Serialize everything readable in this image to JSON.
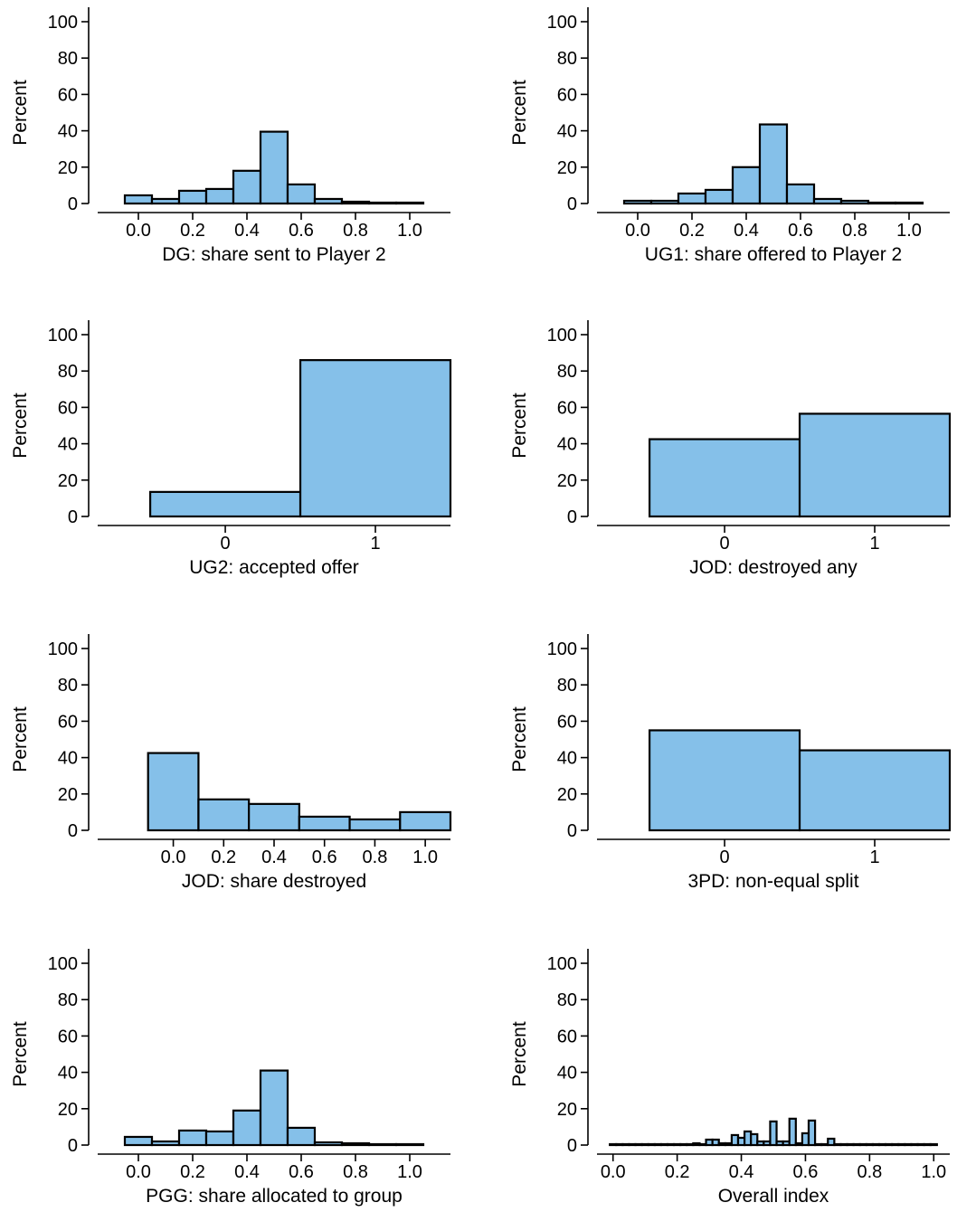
{
  "chart_data": [
    {
      "type": "bar",
      "xlabel": "DG: share sent to Player 2",
      "ylabel": "Percent",
      "x_domain": [
        -0.15,
        1.15
      ],
      "xticks": [
        0.0,
        0.2,
        0.4,
        0.6,
        0.8,
        1.0
      ],
      "xtick_labels": [
        "0.0",
        "0.2",
        "0.4",
        "0.6",
        "0.8",
        "1.0"
      ],
      "ylim": [
        0,
        100
      ],
      "yticks": [
        0,
        20,
        40,
        60,
        80,
        100
      ],
      "ytick_labels": [
        "0",
        "20",
        "40",
        "60",
        "80",
        "100"
      ],
      "bin_width": 0.1,
      "x": [
        0.0,
        0.1,
        0.2,
        0.3,
        0.4,
        0.5,
        0.6,
        0.7,
        0.8,
        0.9,
        1.0
      ],
      "values": [
        4.5,
        2.5,
        7,
        8,
        18,
        39.5,
        10.5,
        2.5,
        1,
        0.5,
        0.5
      ]
    },
    {
      "type": "bar",
      "xlabel": "UG1: share offered to Player 2",
      "ylabel": "Percent",
      "x_domain": [
        -0.15,
        1.15
      ],
      "xticks": [
        0.0,
        0.2,
        0.4,
        0.6,
        0.8,
        1.0
      ],
      "xtick_labels": [
        "0.0",
        "0.2",
        "0.4",
        "0.6",
        "0.8",
        "1.0"
      ],
      "ylim": [
        0,
        100
      ],
      "yticks": [
        0,
        20,
        40,
        60,
        80,
        100
      ],
      "ytick_labels": [
        "0",
        "20",
        "40",
        "60",
        "80",
        "100"
      ],
      "bin_width": 0.1,
      "x": [
        0.0,
        0.1,
        0.2,
        0.3,
        0.4,
        0.5,
        0.6,
        0.7,
        0.8,
        0.9,
        1.0
      ],
      "values": [
        1.5,
        1.5,
        5.5,
        7.5,
        20,
        43.5,
        10.5,
        2.5,
        1.5,
        0.5,
        0.5
      ]
    },
    {
      "type": "bar",
      "xlabel": "UG2: accepted offer",
      "ylabel": "Percent",
      "x_domain": [
        -0.85,
        1.5
      ],
      "xticks": [
        0,
        1
      ],
      "xtick_labels": [
        "0",
        "1"
      ],
      "ylim": [
        0,
        100
      ],
      "yticks": [
        0,
        20,
        40,
        60,
        80,
        100
      ],
      "ytick_labels": [
        "0",
        "20",
        "40",
        "60",
        "80",
        "100"
      ],
      "bin_width": 1,
      "x": [
        0,
        1
      ],
      "values": [
        13.5,
        86
      ]
    },
    {
      "type": "bar",
      "xlabel": "JOD: destroyed any",
      "ylabel": "Percent",
      "x_domain": [
        -0.85,
        1.5
      ],
      "xticks": [
        0,
        1
      ],
      "xtick_labels": [
        "0",
        "1"
      ],
      "ylim": [
        0,
        100
      ],
      "yticks": [
        0,
        20,
        40,
        60,
        80,
        100
      ],
      "ytick_labels": [
        "0",
        "20",
        "40",
        "60",
        "80",
        "100"
      ],
      "bin_width": 1,
      "x": [
        0,
        1
      ],
      "values": [
        42.5,
        56.5
      ]
    },
    {
      "type": "bar",
      "xlabel": "JOD: share destroyed",
      "ylabel": "Percent",
      "x_domain": [
        -0.3,
        1.1
      ],
      "xticks": [
        0.0,
        0.2,
        0.4,
        0.6,
        0.8,
        1.0
      ],
      "xtick_labels": [
        "0.0",
        "0.2",
        "0.4",
        "0.6",
        "0.8",
        "1.0"
      ],
      "ylim": [
        0,
        100
      ],
      "yticks": [
        0,
        20,
        40,
        60,
        80,
        100
      ],
      "ytick_labels": [
        "0",
        "20",
        "40",
        "60",
        "80",
        "100"
      ],
      "bin_width": 0.2,
      "x": [
        0.0,
        0.2,
        0.4,
        0.6,
        0.8,
        1.0
      ],
      "values": [
        42.5,
        17,
        14.5,
        7.5,
        6,
        10
      ]
    },
    {
      "type": "bar",
      "xlabel": "3PD: non-equal split",
      "ylabel": "Percent",
      "x_domain": [
        -0.85,
        1.5
      ],
      "xticks": [
        0,
        1
      ],
      "xtick_labels": [
        "0",
        "1"
      ],
      "ylim": [
        0,
        100
      ],
      "yticks": [
        0,
        20,
        40,
        60,
        80,
        100
      ],
      "ytick_labels": [
        "0",
        "20",
        "40",
        "60",
        "80",
        "100"
      ],
      "bin_width": 1,
      "x": [
        0,
        1
      ],
      "values": [
        55,
        44
      ]
    },
    {
      "type": "bar",
      "xlabel": "PGG: share allocated to group",
      "ylabel": "Percent",
      "x_domain": [
        -0.15,
        1.15
      ],
      "xticks": [
        0.0,
        0.2,
        0.4,
        0.6,
        0.8,
        1.0
      ],
      "xtick_labels": [
        "0.0",
        "0.2",
        "0.4",
        "0.6",
        "0.8",
        "1.0"
      ],
      "ylim": [
        0,
        100
      ],
      "yticks": [
        0,
        20,
        40,
        60,
        80,
        100
      ],
      "ytick_labels": [
        "0",
        "20",
        "40",
        "60",
        "80",
        "100"
      ],
      "bin_width": 0.1,
      "x": [
        0.0,
        0.1,
        0.2,
        0.3,
        0.4,
        0.5,
        0.6,
        0.7,
        0.8,
        0.9,
        1.0
      ],
      "values": [
        4.5,
        2,
        8,
        7.5,
        19,
        41,
        9.5,
        1.5,
        1,
        0.5,
        0.5
      ]
    },
    {
      "type": "bar",
      "xlabel": "Overall index",
      "ylabel": "Percent",
      "x_domain": [
        -0.05,
        1.05
      ],
      "xticks": [
        0.0,
        0.2,
        0.4,
        0.6,
        0.8,
        1.0
      ],
      "xtick_labels": [
        "0.0",
        "0.2",
        "0.4",
        "0.6",
        "0.8",
        "1.0"
      ],
      "ylim": [
        0,
        100
      ],
      "yticks": [
        0,
        20,
        40,
        60,
        80,
        100
      ],
      "ytick_labels": [
        "0",
        "20",
        "40",
        "60",
        "80",
        "100"
      ],
      "bin_width": 0.02,
      "x": [
        0.0,
        0.02,
        0.04,
        0.06,
        0.08,
        0.1,
        0.12,
        0.14,
        0.16,
        0.18,
        0.2,
        0.22,
        0.24,
        0.26,
        0.28,
        0.3,
        0.32,
        0.34,
        0.36,
        0.38,
        0.4,
        0.42,
        0.44,
        0.46,
        0.48,
        0.5,
        0.52,
        0.54,
        0.56,
        0.58,
        0.6,
        0.62,
        0.64,
        0.66,
        0.68,
        0.7,
        0.72,
        0.74,
        0.76,
        0.78,
        0.8,
        0.82,
        0.84,
        0.86,
        0.88,
        0.9,
        0.92,
        0.94,
        0.96,
        0.98,
        1.0
      ],
      "values": [
        0.5,
        0.5,
        0.5,
        0.5,
        0.5,
        0.5,
        0.5,
        0.5,
        0.5,
        0.5,
        0.5,
        0.5,
        0.5,
        1,
        0.5,
        3,
        3,
        1,
        1,
        5.5,
        4,
        7.5,
        6,
        2,
        2,
        13,
        2,
        2,
        14.5,
        1,
        6.5,
        13.5,
        0.5,
        0.5,
        3.5,
        0.5,
        0.5,
        0.5,
        0.5,
        0.5,
        0.5,
        0.5,
        0.5,
        0.5,
        0.5,
        0.5,
        0.5,
        0.5,
        0.5,
        0.5,
        0.5
      ]
    }
  ],
  "colors": {
    "bar_fill": "#85c0e9",
    "bar_stroke": "#000000",
    "axis": "#000000"
  }
}
